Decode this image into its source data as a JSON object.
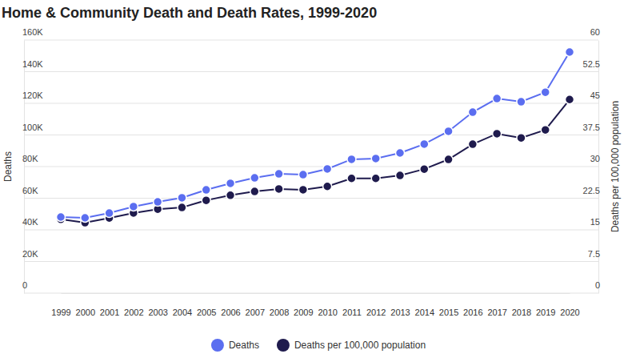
{
  "chart_data": {
    "type": "line",
    "title": "Home & Community Death and Death Rates, 1999-2020",
    "ylabel": "Deaths",
    "y2label": "Deaths per 100,000 population",
    "categories": [
      "1999",
      "2000",
      "2001",
      "2002",
      "2003",
      "2004",
      "2005",
      "2006",
      "2007",
      "2008",
      "2009",
      "2010",
      "2011",
      "2012",
      "2013",
      "2014",
      "2015",
      "2016",
      "2017",
      "2018",
      "2019",
      "2020"
    ],
    "series": [
      {
        "name": "Deaths",
        "color": "#5b6ef0",
        "values": [
          48100,
          47600,
          50600,
          54700,
          57700,
          60300,
          65300,
          69400,
          72900,
          75400,
          74900,
          78500,
          84600,
          85100,
          88600,
          94200,
          102300,
          114400,
          123000,
          121000,
          127000,
          152400
        ]
      },
      {
        "name": "Deaths per 100,000 population",
        "color": "#1f1b4d",
        "axis": "y2",
        "values": [
          17.5,
          16.7,
          17.8,
          19.0,
          19.9,
          20.3,
          22.0,
          23.2,
          24.1,
          24.7,
          24.5,
          25.3,
          27.2,
          27.2,
          27.9,
          29.4,
          31.7,
          35.3,
          37.8,
          36.8,
          38.7,
          45.9
        ]
      }
    ],
    "ylim": [
      0,
      160000
    ],
    "yticks": [
      0,
      {
        "value": 20000,
        "label": "20K"
      },
      {
        "value": 40000,
        "label": "40K"
      },
      {
        "value": 60000,
        "label": "60K"
      },
      {
        "value": 80000,
        "label": "80K"
      },
      {
        "value": 100000,
        "label": "100K"
      },
      {
        "value": 120000,
        "label": "120K"
      },
      {
        "value": 140000,
        "label": "140K"
      },
      {
        "value": 160000,
        "label": "160K"
      }
    ],
    "y2lim": [
      0,
      60
    ],
    "y2ticks": [
      0,
      7.5,
      15,
      22.5,
      30,
      37.5,
      45,
      52.5,
      60
    ],
    "grid": true,
    "legend": "bottom",
    "marker": "circle"
  }
}
